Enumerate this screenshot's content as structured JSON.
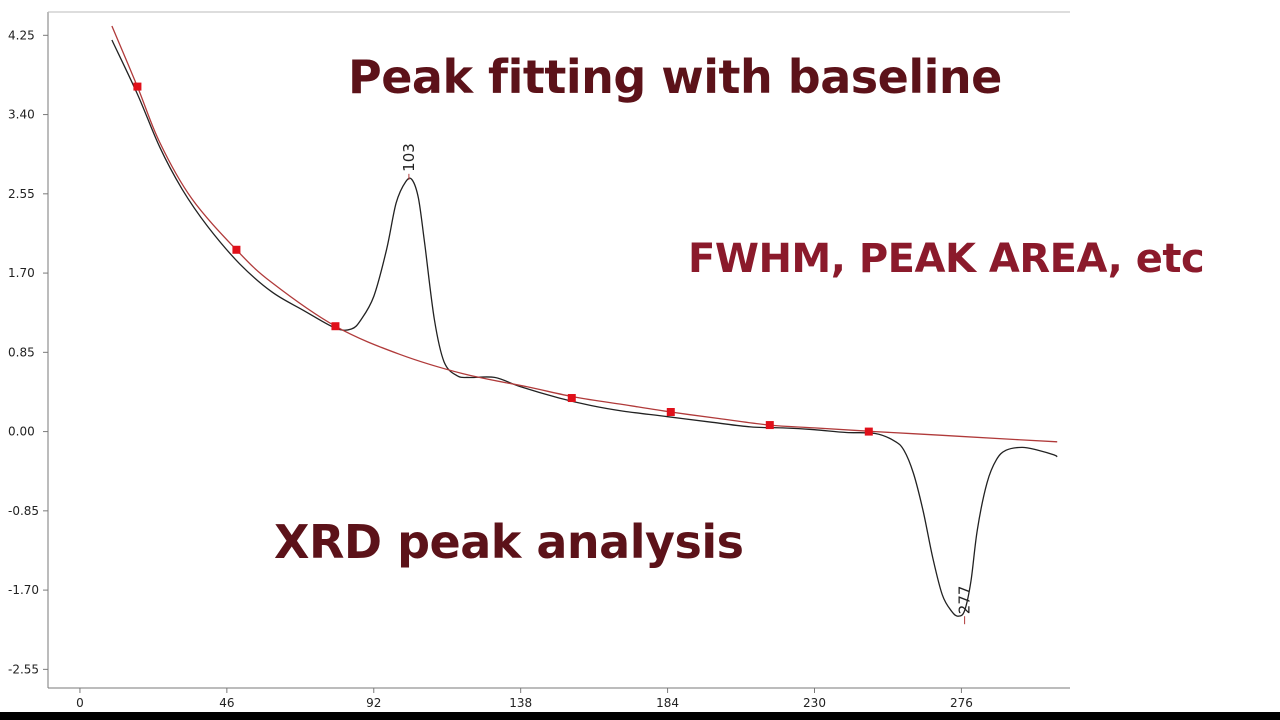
{
  "overlay": {
    "title": "Peak fitting with baseline",
    "subtitle": "FWHM, PEAK AREA, etc",
    "caption": "XRD peak analysis"
  },
  "chart_data": {
    "type": "line",
    "xlim": [
      -10,
      310
    ],
    "ylim": [
      -2.75,
      4.5
    ],
    "x_ticks": [
      0,
      46,
      92,
      138,
      184,
      230,
      276
    ],
    "x_tick_labels": [
      "0",
      "46",
      "92",
      "138",
      "184",
      "230",
      "276"
    ],
    "y_ticks": [
      4.25,
      3.4,
      2.55,
      1.7,
      0.85,
      0.0,
      -0.85,
      -1.7,
      -2.55
    ],
    "y_tick_labels": [
      "4.25",
      "3.40",
      "2.55",
      "1.70",
      "0.85",
      "0.00",
      "-0.85",
      "-1.70",
      "-2.55"
    ],
    "grid": false,
    "series": [
      {
        "color": "#222222",
        "x": [
          10,
          18,
          25,
          32,
          40,
          50,
          60,
          70,
          80,
          85,
          88,
          92,
          96,
          99,
          102,
          104,
          106,
          108,
          111,
          114,
          118,
          122,
          130,
          138,
          150,
          160,
          170,
          184,
          198,
          210,
          220,
          230,
          240,
          249,
          255,
          258,
          261,
          264,
          267,
          270,
          273,
          275,
          277,
          279,
          281,
          284,
          287,
          290,
          295,
          300,
          305,
          306
        ],
        "y": [
          4.2,
          3.62,
          3.05,
          2.6,
          2.2,
          1.8,
          1.5,
          1.3,
          1.11,
          1.1,
          1.2,
          1.45,
          1.95,
          2.45,
          2.68,
          2.7,
          2.5,
          2.0,
          1.2,
          0.75,
          0.6,
          0.58,
          0.58,
          0.48,
          0.36,
          0.28,
          0.22,
          0.16,
          0.1,
          0.05,
          0.04,
          0.02,
          -0.01,
          -0.02,
          -0.1,
          -0.2,
          -0.45,
          -0.85,
          -1.35,
          -1.75,
          -1.93,
          -1.98,
          -1.92,
          -1.6,
          -1.05,
          -0.55,
          -0.3,
          -0.2,
          -0.17,
          -0.2,
          -0.25,
          -0.27
        ]
      },
      {
        "color": "#b03a3a",
        "x": [
          10,
          18,
          25,
          35,
          49,
          60,
          80,
          100,
          120,
          140,
          155,
          170,
          185,
          200,
          216,
          230,
          249,
          270,
          290,
          306
        ],
        "y": [
          4.35,
          3.7,
          3.1,
          2.5,
          1.95,
          1.6,
          1.13,
          0.83,
          0.62,
          0.48,
          0.37,
          0.29,
          0.21,
          0.14,
          0.07,
          0.04,
          0.0,
          -0.04,
          -0.08,
          -0.11
        ]
      }
    ],
    "baseline_anchor_points": {
      "x": [
        18,
        49,
        80,
        154,
        185,
        216,
        247
      ],
      "y": [
        3.7,
        1.95,
        1.13,
        0.36,
        0.21,
        0.07,
        0.0
      ]
    },
    "annotations": [
      {
        "text": "103",
        "x": 103,
        "y": 2.7,
        "position": "above"
      },
      {
        "text": "277",
        "x": 277,
        "y": -1.98,
        "position": "above"
      }
    ]
  }
}
